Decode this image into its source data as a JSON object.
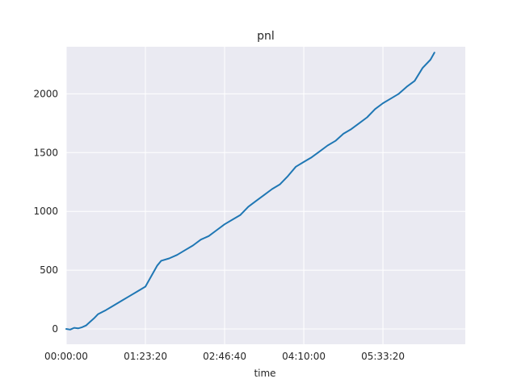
{
  "chart_data": {
    "type": "line",
    "title": "pnl",
    "xlabel": "time",
    "ylabel": "",
    "x_unit": "seconds",
    "xlim": [
      0,
      25200
    ],
    "ylim": [
      -130,
      2400
    ],
    "xticks": [
      0,
      5000,
      10000,
      15000,
      20000
    ],
    "xtick_labels": [
      "00:00:00",
      "01:23:20",
      "02:46:40",
      "04:10:00",
      "05:33:20"
    ],
    "yticks": [
      0,
      500,
      1000,
      1500,
      2000
    ],
    "ytick_labels": [
      "0",
      "500",
      "1000",
      "1500",
      "2000"
    ],
    "grid": true,
    "background": "#EAEAF2",
    "grid_color": "#FFFFFF",
    "series": [
      {
        "name": "",
        "color": "#1F77B4",
        "x": [
          0,
          250,
          500,
          750,
          1000,
          1250,
          1500,
          1750,
          2000,
          2500,
          3000,
          3500,
          4000,
          4500,
          5000,
          5250,
          5500,
          5750,
          6000,
          6500,
          7000,
          7500,
          8000,
          8500,
          9000,
          9500,
          10000,
          10500,
          11000,
          11500,
          12000,
          12500,
          13000,
          13500,
          14000,
          14500,
          15000,
          15500,
          16000,
          16500,
          17000,
          17500,
          18000,
          18500,
          19000,
          19500,
          20000,
          20500,
          21000,
          21500,
          22000,
          22500,
          23000,
          23250
        ],
        "values": [
          0,
          -5,
          10,
          5,
          15,
          30,
          60,
          90,
          125,
          160,
          200,
          240,
          280,
          320,
          360,
          420,
          480,
          540,
          580,
          600,
          630,
          670,
          710,
          760,
          790,
          840,
          890,
          930,
          970,
          1040,
          1090,
          1140,
          1190,
          1230,
          1300,
          1380,
          1420,
          1460,
          1510,
          1560,
          1600,
          1660,
          1700,
          1750,
          1800,
          1870,
          1920,
          1960,
          2000,
          2060,
          2110,
          2220,
          2290,
          2350
        ]
      }
    ]
  }
}
